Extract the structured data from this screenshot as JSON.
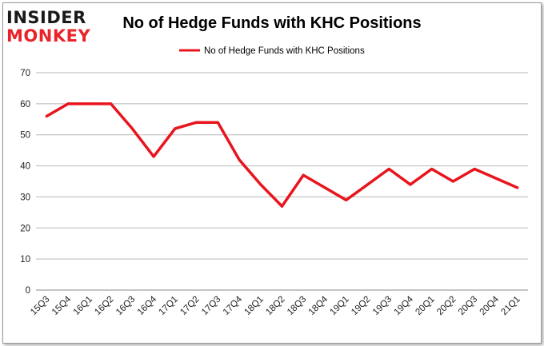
{
  "logo": {
    "line1": "INSIDER",
    "line2": "MONKEY",
    "line1_color": "#1a1a1a",
    "line2_color": "#e8232a"
  },
  "chart_data": {
    "type": "line",
    "title": "No of Hedge Funds with KHC Positions",
    "xlabel": "",
    "ylabel": "",
    "categories": [
      "15Q3",
      "15Q4",
      "16Q1",
      "16Q2",
      "16Q3",
      "16Q4",
      "17Q1",
      "17Q2",
      "17Q3",
      "17Q4",
      "18Q1",
      "18Q2",
      "18Q3",
      "18Q4",
      "19Q1",
      "19Q2",
      "19Q3",
      "19Q4",
      "20Q1",
      "20Q2",
      "20Q3",
      "20Q4",
      "21Q1"
    ],
    "series": [
      {
        "name": "No of Hedge Funds with KHC Positions",
        "color": "#e8151d",
        "values": [
          56,
          60,
          60,
          60,
          52,
          43,
          52,
          54,
          54,
          42,
          34,
          27,
          37,
          33,
          29,
          34,
          39,
          34,
          39,
          35,
          39,
          36,
          33
        ]
      }
    ],
    "ylim": [
      0,
      70
    ],
    "yticks": [
      0,
      10,
      20,
      30,
      40,
      50,
      60,
      70
    ],
    "grid": true,
    "legend_position": "top-center"
  }
}
